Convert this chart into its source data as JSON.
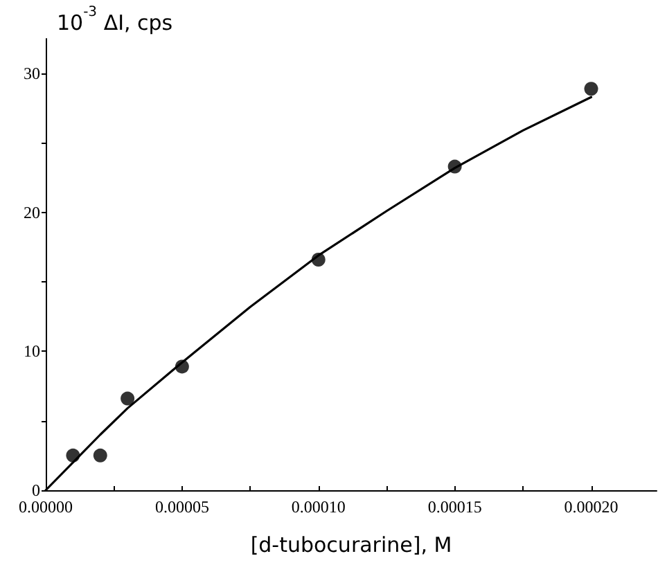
{
  "chart_data": {
    "type": "scatter",
    "xlabel": "[d-tubocurarine], M",
    "ylabel": "10$^{-3}$ ΔI, cps",
    "xlim": [
      0,
      0.000224
    ],
    "ylim": [
      0,
      32.5
    ],
    "xticks": [
      {
        "value": 0,
        "label": "0.00000"
      },
      {
        "value": 2.5e-05,
        "label": null
      },
      {
        "value": 5e-05,
        "label": "0.00005"
      },
      {
        "value": 7.5e-05,
        "label": null
      },
      {
        "value": 0.0001,
        "label": "0.00010"
      },
      {
        "value": 0.000125,
        "label": null
      },
      {
        "value": 0.00015,
        "label": "0.00015"
      },
      {
        "value": 0.000175,
        "label": null
      },
      {
        "value": 0.0002,
        "label": "0.00020"
      }
    ],
    "yticks": [
      0,
      {
        "value": 5,
        "label": null
      },
      10,
      {
        "value": 15,
        "label": null
      },
      20,
      {
        "value": 25,
        "label": null
      },
      30
    ],
    "grid": false,
    "series": [
      {
        "marker": "circle",
        "color": "#000000",
        "x": [
          1e-05,
          2e-05,
          3e-05,
          5e-05,
          0.0001,
          0.00015,
          0.0002
        ],
        "values": [
          2.5,
          2.5,
          6.6,
          8.9,
          16.6,
          23.3,
          28.9
        ]
      },
      {
        "type": "line",
        "marker": "none",
        "line_style": "solid",
        "color": "#000000",
        "x": [
          0,
          1e-05,
          2e-05,
          3e-05,
          5e-05,
          7.5e-05,
          0.0001,
          0.000125,
          0.00015,
          0.000175,
          0.0002
        ],
        "values": [
          0,
          2.0,
          4.0,
          5.9,
          9.2,
          13.2,
          16.9,
          20.1,
          23.2,
          25.9,
          28.3
        ]
      }
    ]
  }
}
